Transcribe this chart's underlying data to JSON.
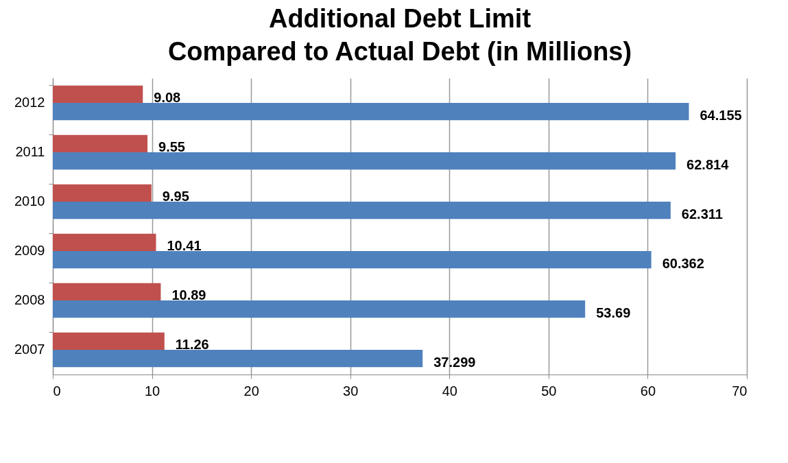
{
  "chart_data": {
    "type": "bar",
    "orientation": "horizontal",
    "title": "Additional Debt Limit\nCompared to Actual Debt (in Millions)",
    "categories": [
      "2012",
      "2011",
      "2010",
      "2009",
      "2008",
      "2007"
    ],
    "series": [
      {
        "color": "#c0504d",
        "values": [
          9.08,
          9.55,
          9.95,
          10.41,
          10.89,
          11.26
        ]
      },
      {
        "color": "#4f81bd",
        "values": [
          64.155,
          62.814,
          62.311,
          60.362,
          53.69,
          37.299
        ]
      }
    ],
    "xlim": [
      0,
      70
    ],
    "xticks": [
      0,
      10,
      20,
      30,
      40,
      50,
      60,
      70
    ],
    "grid": "x",
    "data_labels": true
  }
}
